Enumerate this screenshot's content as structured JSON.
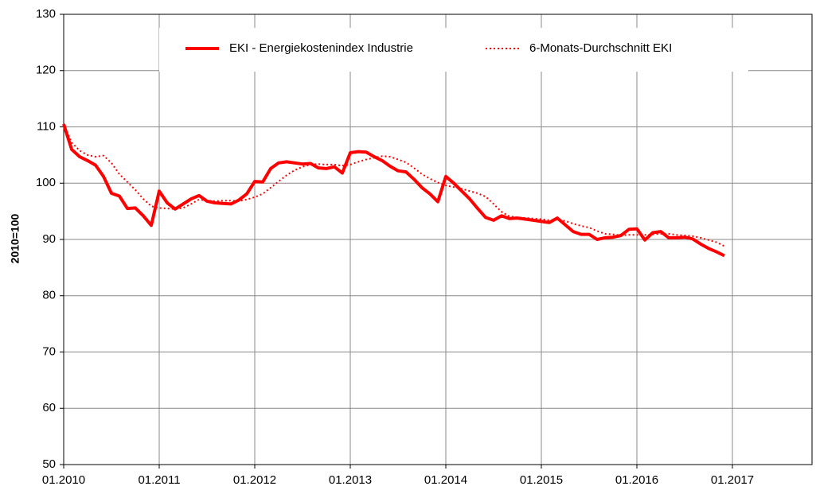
{
  "chart_data": {
    "type": "line",
    "y_label": "2010=100",
    "categories": [
      "01.2010",
      null,
      null,
      null,
      null,
      null,
      null,
      null,
      null,
      null,
      null,
      null,
      "01.2011",
      null,
      null,
      null,
      null,
      null,
      null,
      null,
      null,
      null,
      null,
      null,
      "01.2012",
      null,
      null,
      null,
      null,
      null,
      null,
      null,
      null,
      null,
      null,
      null,
      "01.2013",
      null,
      null,
      null,
      null,
      null,
      null,
      null,
      null,
      null,
      null,
      null,
      "01.2014",
      null,
      null,
      null,
      null,
      null,
      null,
      null,
      null,
      null,
      null,
      null,
      "01.2015",
      null,
      null,
      null,
      null,
      null,
      null,
      null,
      null,
      null,
      null,
      null,
      "01.2016",
      null,
      null,
      null,
      null,
      null,
      null,
      null,
      null,
      null,
      null,
      null,
      "01.2017"
    ],
    "series": [
      {
        "name": "EKI - Energiekostenindex Industrie",
        "color": "#ff0000",
        "style": "solid",
        "values": [
          110.5,
          106,
          104.7,
          104,
          103.2,
          101.2,
          98.2,
          97.7,
          95.5,
          95.6,
          94.2,
          92.5,
          98.6,
          96.5,
          95.4,
          96.3,
          97.2,
          97.8,
          96.8,
          96.5,
          96.4,
          96.3,
          97,
          98.1,
          100.3,
          100.2,
          102.6,
          103.6,
          103.8,
          103.6,
          103.4,
          103.5,
          102.7,
          102.6,
          102.9,
          101.8,
          105.4,
          105.6,
          105.5,
          104.7,
          104,
          103,
          102.2,
          102,
          100.7,
          99.2,
          98.1,
          96.7,
          101.2,
          100,
          98.6,
          97.2,
          95.5,
          93.9,
          93.4,
          94.2,
          93.7,
          93.8,
          93.6,
          93.4,
          93.2,
          93,
          93.8,
          92.6,
          91.4,
          90.9,
          90.9,
          90,
          90.3,
          90.4,
          90.7,
          91.8,
          91.9,
          89.9,
          91.2,
          91.4,
          90.3,
          90.3,
          90.4,
          90.1,
          89.2,
          88.4,
          87.8,
          87.1,
          null
        ]
      },
      {
        "name": "6-Monats-Durchschnitt EKI",
        "color": "#ff0000",
        "style": "dotted",
        "values": [
          110.5,
          107.2,
          105.8,
          105,
          104.7,
          104.9,
          103.6,
          101.6,
          100.2,
          98.8,
          97.2,
          95.9,
          95.6,
          95.5,
          95.4,
          95.6,
          96.3,
          97.1,
          96.9,
          96.8,
          96.9,
          96.9,
          96.8,
          97.1,
          97.5,
          98.1,
          99.2,
          100.3,
          101.4,
          102.3,
          102.9,
          103.3,
          103.4,
          103.3,
          103.3,
          103.1,
          103.3,
          103.8,
          104.2,
          104.5,
          104.8,
          104.7,
          104.2,
          103.7,
          102.7,
          101.6,
          100.8,
          100.1,
          99.6,
          99.3,
          99,
          98.6,
          98.2,
          97.6,
          96.3,
          94.9,
          94.1,
          93.9,
          93.8,
          93.7,
          93.6,
          93.4,
          93.5,
          93.3,
          92.8,
          92.4,
          92.1,
          91.5,
          91,
          90.9,
          90.7,
          90.8,
          90.8,
          90.8,
          90.9,
          91,
          91,
          90.8,
          90.7,
          90.6,
          90.3,
          89.9,
          89.5,
          88.8,
          null
        ]
      }
    ],
    "ylim": [
      50,
      130
    ],
    "yticks": [
      50,
      60,
      70,
      80,
      90,
      100,
      110,
      120,
      130
    ],
    "grid": true
  }
}
